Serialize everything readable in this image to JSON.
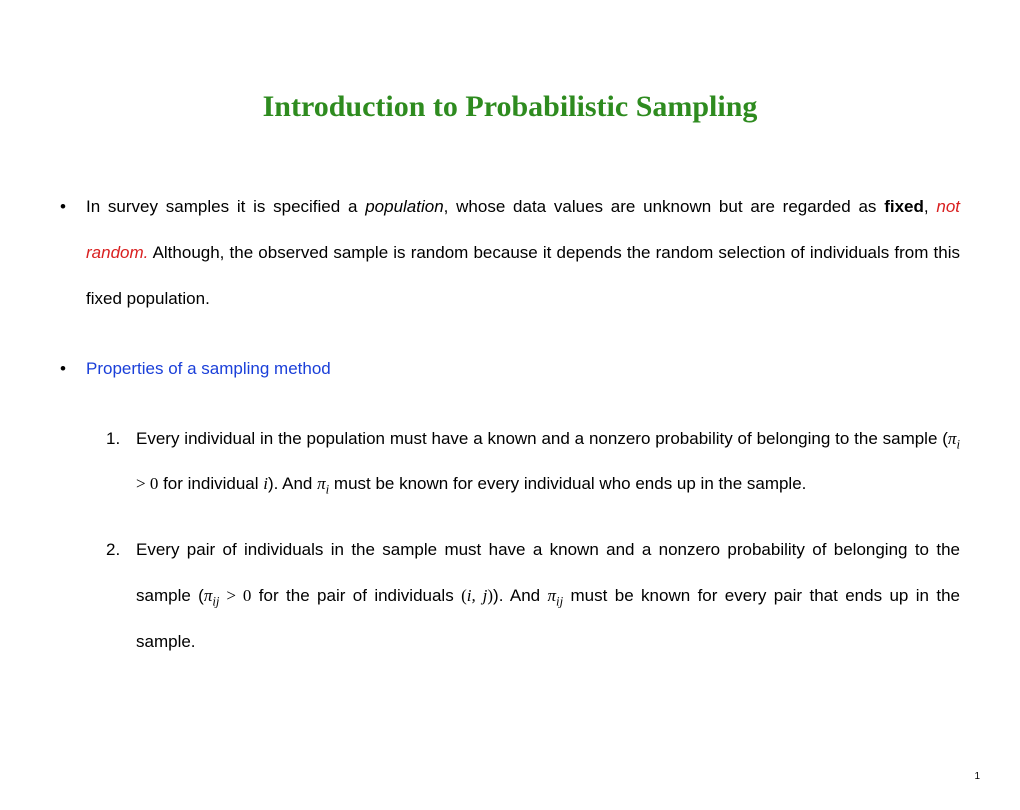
{
  "title": "Introduction to Probabilistic Sampling",
  "bullet1": {
    "pre": "In survey samples it is specified a ",
    "population": "population",
    "mid1": ", whose data values are unknown but are regarded as ",
    "fixed": "fixed",
    "comma": ", ",
    "notrandom": "not random.",
    "post": " Although, the observed sample is random because it depends the random selection of individuals from this fixed population."
  },
  "bullet2": {
    "label": "Properties of a sampling method"
  },
  "item1": {
    "num": "1.",
    "t1": "Every individual in the population must have a known and a nonzero probability of belonging to the sample (",
    "pi_i": "π",
    "sub_i1": "i",
    "gt0_1": " > 0",
    "t2": " for individual ",
    "i_alone": "i",
    "t3": "). And ",
    "pi_i2": "π",
    "sub_i2": "i",
    "t4": " must be known for every individual who ends up in the sample."
  },
  "item2": {
    "num": "2.",
    "t1": "Every pair of individuals in the sample must have a known and a nonzero probability of belonging to the sample (",
    "pi_ij1": "π",
    "sub_ij1": "ij",
    "gt0_2": " > 0",
    "t2": " for the pair of individuals ",
    "pair_open": "(",
    "pair_i": "i, j",
    "pair_close": ")",
    "t3": "). And ",
    "pi_ij2": "π",
    "sub_ij2": "ij",
    "t4": " must be known for every pair that ends up in the sample."
  },
  "colors": {
    "title": "#2e8b1f",
    "red": "#d92020",
    "blue": "#1a3fd9",
    "text": "#000000",
    "bg": "#ffffff"
  },
  "page_number": "1"
}
